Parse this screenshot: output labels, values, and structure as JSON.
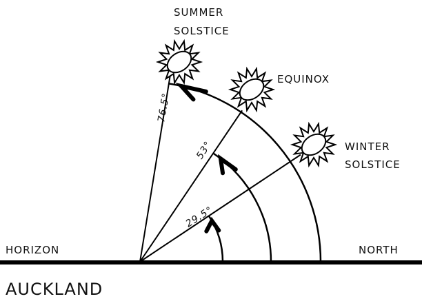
{
  "labels": {
    "summer": [
      "SUMMER",
      "SOLSTICE"
    ],
    "equinox": "EQUINOX",
    "winter": [
      "WINTER",
      "SOLSTICE"
    ],
    "horizon": "HORIZON",
    "north": "NORTH",
    "place": "AUCKLAND"
  },
  "angles": {
    "summer": "76.5°",
    "equinox": "53°",
    "winter": "29.5°"
  }
}
